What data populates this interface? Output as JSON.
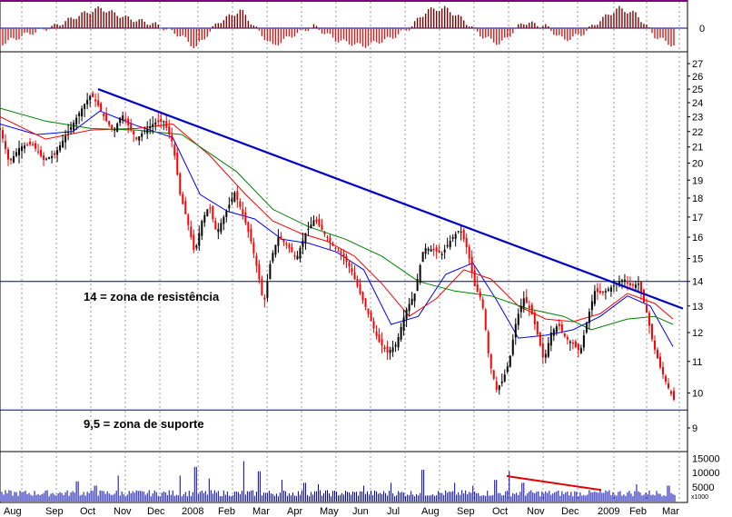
{
  "chart_data": {
    "type": "candlestick",
    "panels": [
      {
        "name": "oscillator",
        "y_ticks": [
          0
        ]
      },
      {
        "name": "price",
        "ylim": [
          8.6,
          28.3
        ],
        "y_ticks": [
          9,
          10,
          11,
          12,
          13,
          14,
          15,
          16,
          17,
          18,
          19,
          20,
          21,
          22,
          23,
          24,
          25,
          26,
          27
        ],
        "scale": "log"
      },
      {
        "name": "volume",
        "unit_label": "x1000",
        "y_ticks": [
          5000,
          10000,
          15000
        ],
        "ylim": [
          0,
          17000
        ]
      }
    ],
    "x_labels": [
      "Aug",
      "Sep",
      "Oct",
      "Nov",
      "Dec",
      "2008",
      "Feb",
      "Mar",
      "Apr",
      "May",
      "Jun",
      "Jul",
      "Aug",
      "Sep",
      "Oct",
      "Nov",
      "Dec",
      "2009",
      "Feb",
      "Mar"
    ],
    "horizontal_lines": [
      {
        "value": 14,
        "color": "#000080"
      },
      {
        "value": 9.5,
        "color": "#000080"
      }
    ],
    "annotations": [
      {
        "text": "14 = zona de resistência",
        "anchor_value": 14
      },
      {
        "text": "9,5 = zona de suporte",
        "anchor_value": 9.5
      }
    ],
    "resistance_trendline": {
      "from": {
        "month": "Oct",
        "value": 25.0
      },
      "to": {
        "month": "Mar",
        "value": 12.9
      },
      "color": "#0000cc"
    },
    "volume_trendline": {
      "from": {
        "month": "Oct",
        "value": 8800
      },
      "to": {
        "month": "Dec",
        "value": 4000
      },
      "color": "#e00000"
    },
    "price_path": [
      [
        0,
        22.2
      ],
      [
        10,
        20.0
      ],
      [
        22,
        21.0
      ],
      [
        35,
        21.2
      ],
      [
        48,
        20.2
      ],
      [
        60,
        20.5
      ],
      [
        70,
        21.5
      ],
      [
        80,
        22.5
      ],
      [
        92,
        23.8
      ],
      [
        100,
        24.6
      ],
      [
        108,
        23.8
      ],
      [
        116,
        22.8
      ],
      [
        125,
        22.0
      ],
      [
        134,
        23.2
      ],
      [
        142,
        22.3
      ],
      [
        150,
        21.5
      ],
      [
        160,
        22.1
      ],
      [
        170,
        22.6
      ],
      [
        180,
        22.7
      ],
      [
        190,
        21.2
      ],
      [
        198,
        18.2
      ],
      [
        206,
        16.8
      ],
      [
        214,
        15.2
      ],
      [
        222,
        16.8
      ],
      [
        230,
        17.6
      ],
      [
        238,
        16.2
      ],
      [
        248,
        17.2
      ],
      [
        258,
        18.3
      ],
      [
        268,
        17.0
      ],
      [
        276,
        15.8
      ],
      [
        284,
        14.3
      ],
      [
        290,
        13.0
      ],
      [
        298,
        15.0
      ],
      [
        306,
        16.0
      ],
      [
        316,
        15.6
      ],
      [
        326,
        15.0
      ],
      [
        336,
        16.2
      ],
      [
        346,
        16.9
      ],
      [
        356,
        16.2
      ],
      [
        366,
        15.6
      ],
      [
        376,
        15.2
      ],
      [
        386,
        14.5
      ],
      [
        396,
        13.5
      ],
      [
        406,
        12.6
      ],
      [
        416,
        11.7
      ],
      [
        426,
        11.3
      ],
      [
        436,
        11.6
      ],
      [
        446,
        12.8
      ],
      [
        456,
        13.5
      ],
      [
        466,
        15.5
      ],
      [
        476,
        15.4
      ],
      [
        486,
        15.2
      ],
      [
        496,
        15.9
      ],
      [
        506,
        16.4
      ],
      [
        514,
        15.4
      ],
      [
        522,
        13.8
      ],
      [
        530,
        13.2
      ],
      [
        538,
        11.0
      ],
      [
        546,
        10.1
      ],
      [
        553,
        10.4
      ],
      [
        560,
        11.0
      ],
      [
        568,
        12.5
      ],
      [
        576,
        13.3
      ],
      [
        584,
        12.8
      ],
      [
        592,
        11.8
      ],
      [
        598,
        11.0
      ],
      [
        606,
        12.0
      ],
      [
        614,
        12.3
      ],
      [
        622,
        11.8
      ],
      [
        630,
        11.6
      ],
      [
        638,
        11.3
      ],
      [
        646,
        12.5
      ],
      [
        654,
        13.6
      ],
      [
        662,
        13.5
      ],
      [
        670,
        13.7
      ],
      [
        678,
        13.9
      ],
      [
        686,
        14.1
      ],
      [
        694,
        13.8
      ],
      [
        702,
        13.9
      ],
      [
        710,
        12.9
      ],
      [
        718,
        11.6
      ],
      [
        726,
        10.8
      ],
      [
        734,
        10.2
      ],
      [
        741,
        9.8
      ]
    ],
    "moving_averages": [
      {
        "color": "#0000ff",
        "points": [
          [
            0,
            22.5
          ],
          [
            40,
            21.8
          ],
          [
            80,
            22.0
          ],
          [
            110,
            23.4
          ],
          [
            150,
            22.4
          ],
          [
            190,
            21.6
          ],
          [
            220,
            18.2
          ],
          [
            250,
            17.3
          ],
          [
            280,
            16.9
          ],
          [
            310,
            15.9
          ],
          [
            340,
            15.7
          ],
          [
            370,
            15.3
          ],
          [
            400,
            14.5
          ],
          [
            430,
            12.3
          ],
          [
            460,
            12.6
          ],
          [
            490,
            14.3
          ],
          [
            520,
            14.8
          ],
          [
            545,
            13.3
          ],
          [
            570,
            11.8
          ],
          [
            600,
            11.9
          ],
          [
            630,
            12.1
          ],
          [
            660,
            12.6
          ],
          [
            690,
            13.4
          ],
          [
            715,
            13.0
          ],
          [
            740,
            11.5
          ]
        ]
      },
      {
        "color": "#ff0000",
        "points": [
          [
            0,
            23.0
          ],
          [
            50,
            21.5
          ],
          [
            100,
            22.1
          ],
          [
            150,
            22.2
          ],
          [
            190,
            22.5
          ],
          [
            230,
            20.5
          ],
          [
            270,
            18.2
          ],
          [
            300,
            16.8
          ],
          [
            330,
            16.2
          ],
          [
            360,
            15.8
          ],
          [
            390,
            15.1
          ],
          [
            420,
            13.9
          ],
          [
            450,
            12.6
          ],
          [
            480,
            13.3
          ],
          [
            510,
            14.5
          ],
          [
            540,
            14.1
          ],
          [
            570,
            13.0
          ],
          [
            600,
            12.5
          ],
          [
            630,
            12.4
          ],
          [
            660,
            12.7
          ],
          [
            690,
            13.5
          ],
          [
            720,
            13.1
          ],
          [
            740,
            12.5
          ]
        ]
      },
      {
        "color": "#008000",
        "points": [
          [
            0,
            23.6
          ],
          [
            50,
            22.7
          ],
          [
            100,
            22.2
          ],
          [
            150,
            22.1
          ],
          [
            200,
            21.8
          ],
          [
            260,
            19.5
          ],
          [
            300,
            17.4
          ],
          [
            340,
            16.5
          ],
          [
            380,
            15.9
          ],
          [
            420,
            15.1
          ],
          [
            460,
            14.0
          ],
          [
            500,
            13.6
          ],
          [
            540,
            13.4
          ],
          [
            580,
            12.9
          ],
          [
            620,
            12.6
          ],
          [
            650,
            12.1
          ],
          [
            690,
            12.5
          ],
          [
            720,
            12.6
          ],
          [
            740,
            12.3
          ]
        ]
      }
    ],
    "oscillator": [
      [
        0,
        -0.8
      ],
      [
        30,
        -0.3
      ],
      [
        60,
        0.1
      ],
      [
        90,
        0.7
      ],
      [
        110,
        1.0
      ],
      [
        140,
        0.5
      ],
      [
        170,
        0.2
      ],
      [
        200,
        -0.4
      ],
      [
        215,
        -1.0
      ],
      [
        240,
        0.3
      ],
      [
        265,
        0.9
      ],
      [
        285,
        -0.2
      ],
      [
        300,
        -0.9
      ],
      [
        320,
        -0.4
      ],
      [
        345,
        0.1
      ],
      [
        370,
        -0.6
      ],
      [
        400,
        -0.9
      ],
      [
        430,
        -0.5
      ],
      [
        450,
        0.0
      ],
      [
        470,
        0.9
      ],
      [
        490,
        1.0
      ],
      [
        510,
        0.4
      ],
      [
        530,
        -0.4
      ],
      [
        550,
        -0.8
      ],
      [
        575,
        0.3
      ],
      [
        600,
        0.1
      ],
      [
        620,
        -0.6
      ],
      [
        640,
        -0.3
      ],
      [
        660,
        0.4
      ],
      [
        680,
        1.0
      ],
      [
        700,
        0.7
      ],
      [
        720,
        -0.4
      ],
      [
        742,
        -0.9
      ]
    ],
    "volume_peaks": [
      [
        85,
        7000
      ],
      [
        105,
        5500
      ],
      [
        130,
        9000
      ],
      [
        198,
        9000
      ],
      [
        215,
        12000
      ],
      [
        230,
        8000
      ],
      [
        268,
        14000
      ],
      [
        285,
        10500
      ],
      [
        310,
        7500
      ],
      [
        335,
        6500
      ],
      [
        350,
        6000
      ],
      [
        400,
        5500
      ],
      [
        430,
        6500
      ],
      [
        465,
        11000
      ],
      [
        500,
        6500
      ],
      [
        520,
        5500
      ],
      [
        545,
        7500
      ],
      [
        560,
        10500
      ],
      [
        575,
        6500
      ],
      [
        660,
        4000
      ],
      [
        700,
        6000
      ],
      [
        735,
        5500
      ]
    ]
  }
}
